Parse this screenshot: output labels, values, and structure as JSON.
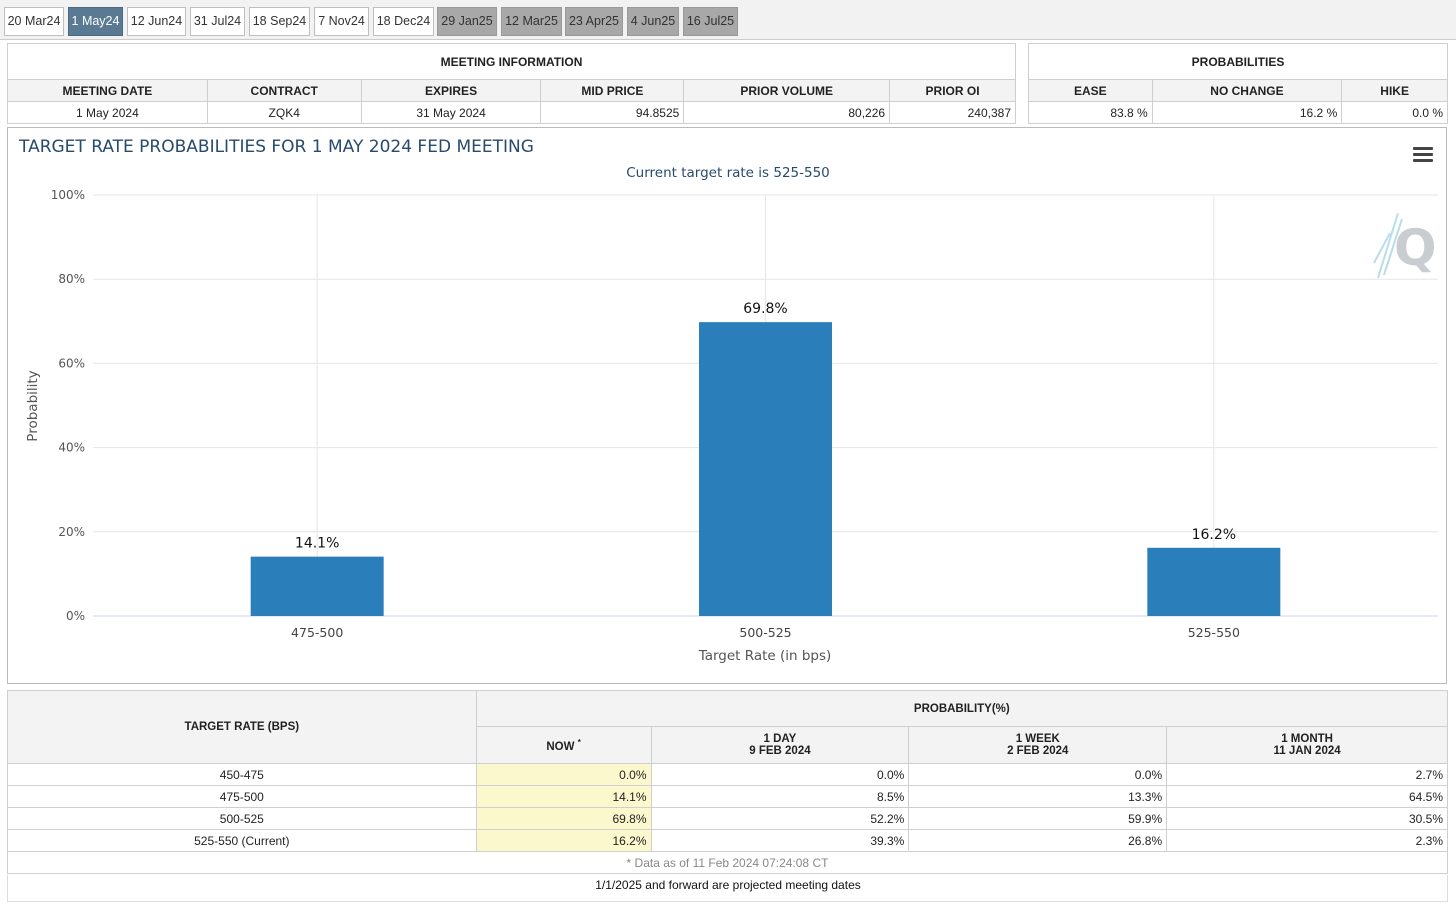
{
  "tabs": [
    {
      "label": "20 Mar24",
      "state": "normal"
    },
    {
      "label": "1 May24",
      "state": "active"
    },
    {
      "label": "12 Jun24",
      "state": "normal"
    },
    {
      "label": "31 Jul24",
      "state": "normal"
    },
    {
      "label": "18 Sep24",
      "state": "normal"
    },
    {
      "label": "7 Nov24",
      "state": "normal"
    },
    {
      "label": "18 Dec24",
      "state": "normal"
    },
    {
      "label": "29 Jan25",
      "state": "future"
    },
    {
      "label": "12 Mar25",
      "state": "future"
    },
    {
      "label": "23 Apr25",
      "state": "future"
    },
    {
      "label": "4 Jun25",
      "state": "future"
    },
    {
      "label": "16 Jul25",
      "state": "future"
    }
  ],
  "meeting_info": {
    "header": "MEETING INFORMATION",
    "columns": [
      "MEETING DATE",
      "CONTRACT",
      "EXPIRES",
      "MID PRICE",
      "PRIOR VOLUME",
      "PRIOR OI"
    ],
    "values": [
      "1 May 2024",
      "ZQK4",
      "31 May 2024",
      "94.8525",
      "80,226",
      "240,387"
    ]
  },
  "probabilities": {
    "header": "PROBABILITIES",
    "columns": [
      "EASE",
      "NO CHANGE",
      "HIKE"
    ],
    "values": [
      "83.8 %",
      "16.2 %",
      "0.0 %"
    ]
  },
  "chart": {
    "title": "TARGET RATE PROBABILITIES FOR 1 MAY 2024 FED MEETING",
    "subtitle": "Current target rate is 525-550",
    "menu_icon": "hamburger-menu-icon",
    "bar_color": "#2a7fba"
  },
  "chart_data": {
    "type": "bar",
    "title": "TARGET RATE PROBABILITIES FOR 1 MAY 2024 FED MEETING",
    "subtitle": "Current target rate is 525-550",
    "categories": [
      "475-500",
      "500-525",
      "525-550"
    ],
    "values": [
      14.1,
      69.8,
      16.2
    ],
    "data_labels": [
      "14.1%",
      "69.8%",
      "16.2%"
    ],
    "xlabel": "Target Rate (in bps)",
    "ylabel": "Probability",
    "ylim": [
      0,
      100
    ],
    "yticks": [
      0,
      20,
      40,
      60,
      80,
      100
    ],
    "ytick_labels": [
      "0%",
      "20%",
      "40%",
      "60%",
      "80%",
      "100%"
    ],
    "grid": true,
    "legend": "none"
  },
  "prob_table": {
    "col_target": "TARGET RATE (BPS)",
    "col_prob": "PROBABILITY(%)",
    "sub_now": "NOW",
    "sub_now_mark": "*",
    "sub_1day": "1 DAY",
    "sub_1day_date": "9 FEB 2024",
    "sub_1week": "1 WEEK",
    "sub_1week_date": "2 FEB 2024",
    "sub_1month": "1 MONTH",
    "sub_1month_date": "11 JAN 2024",
    "rows": [
      {
        "rate": "450-475",
        "now": "0.0%",
        "d1": "0.0%",
        "w1": "0.0%",
        "m1": "2.7%"
      },
      {
        "rate": "475-500",
        "now": "14.1%",
        "d1": "8.5%",
        "w1": "13.3%",
        "m1": "64.5%"
      },
      {
        "rate": "500-525",
        "now": "69.8%",
        "d1": "52.2%",
        "w1": "59.9%",
        "m1": "30.5%"
      },
      {
        "rate": "525-550 (Current)",
        "now": "16.2%",
        "d1": "39.3%",
        "w1": "26.8%",
        "m1": "2.3%"
      }
    ],
    "footnote": "* Data as of 11 Feb 2024 07:24:08 CT"
  },
  "bottom_note": "1/1/2025 and forward are projected meeting dates"
}
